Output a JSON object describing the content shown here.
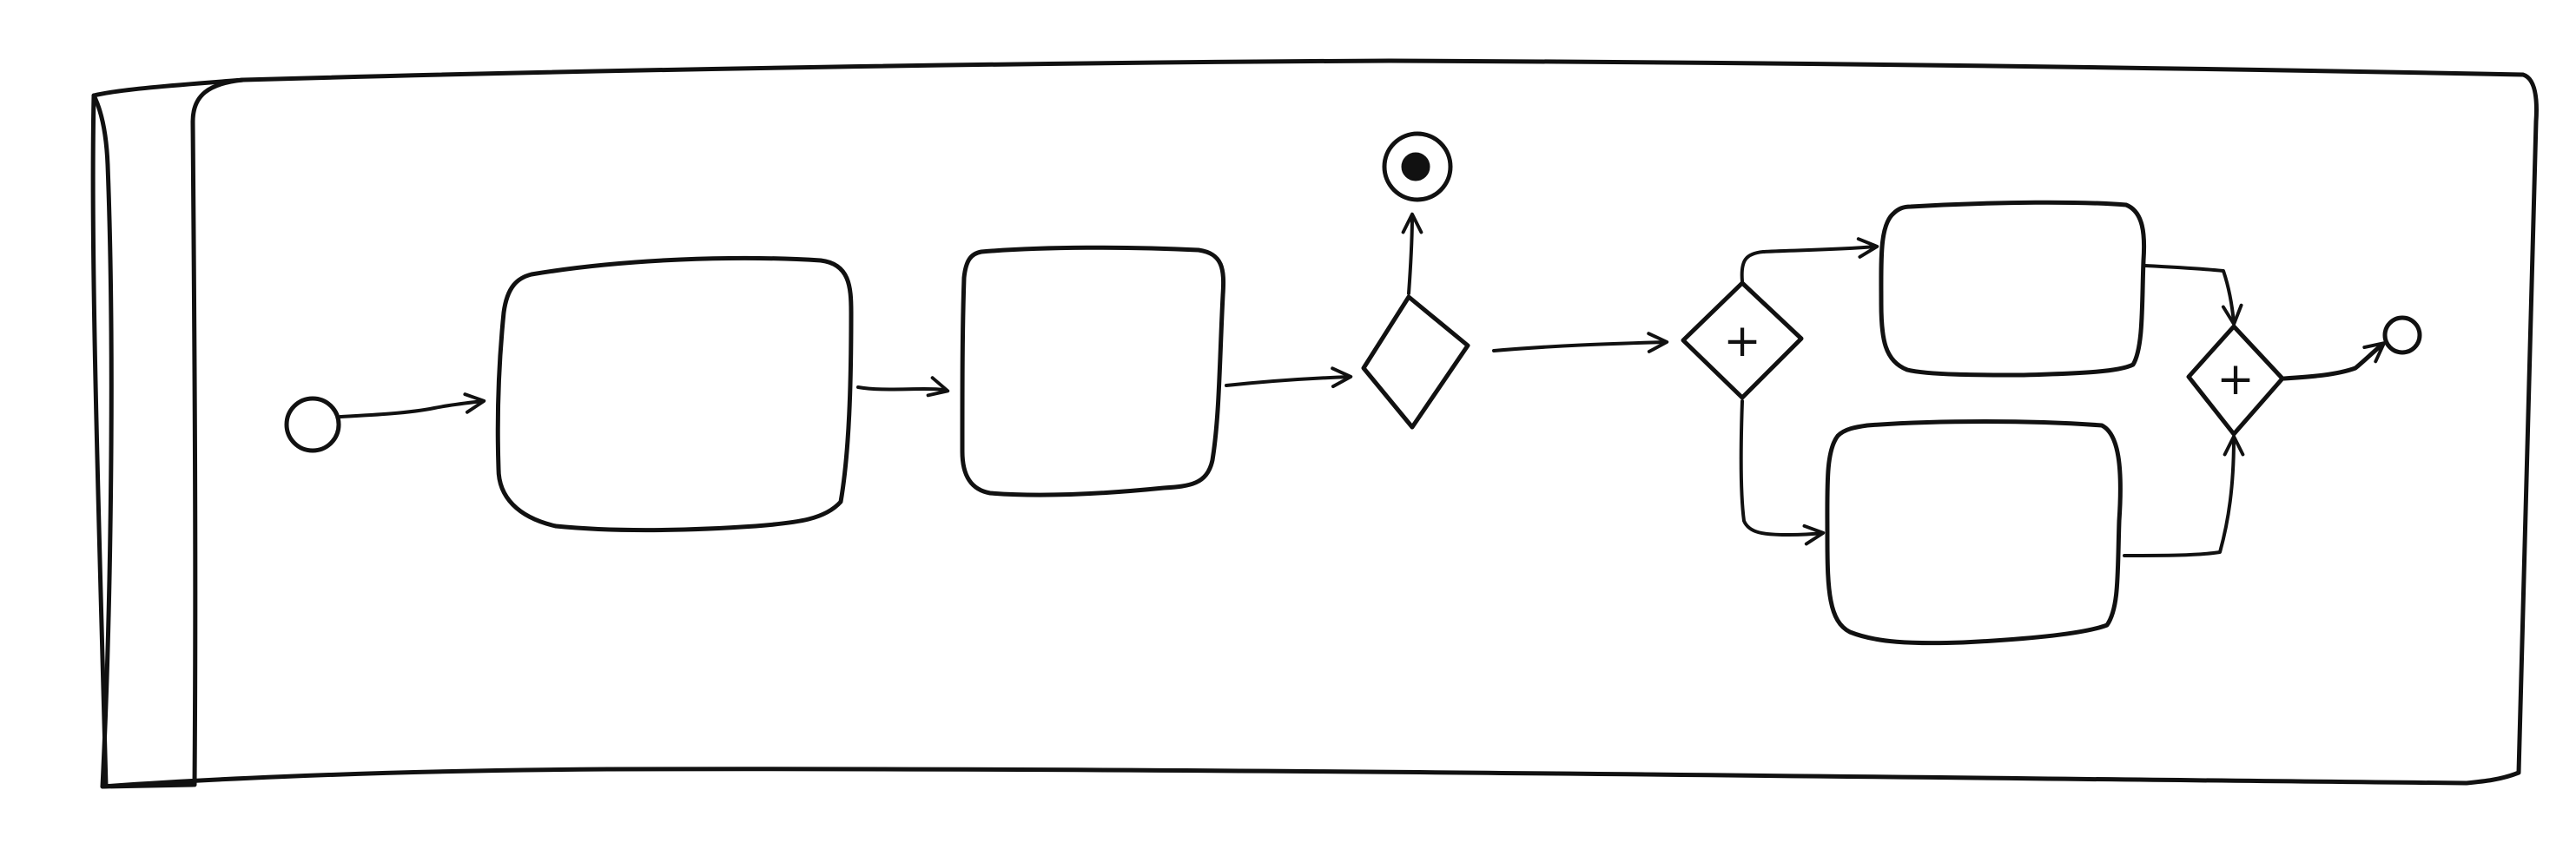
{
  "diagram": {
    "kind": "hand-drawn BPMN process sketch",
    "ink_color": "#111111",
    "background_color": "#ffffff",
    "pool": {
      "label": ""
    },
    "elements": [
      {
        "id": "start-event",
        "type": "start-event",
        "label": ""
      },
      {
        "id": "task-1",
        "type": "task",
        "label": ""
      },
      {
        "id": "task-2",
        "type": "task",
        "label": ""
      },
      {
        "id": "exclusive-gateway",
        "type": "exclusive-gateway",
        "label": ""
      },
      {
        "id": "terminate-end-event",
        "type": "terminate-end-event",
        "label": ""
      },
      {
        "id": "parallel-split-gateway",
        "type": "parallel-gateway",
        "symbol": "+"
      },
      {
        "id": "task-3",
        "type": "task",
        "label": ""
      },
      {
        "id": "task-4",
        "type": "task",
        "label": ""
      },
      {
        "id": "parallel-join-gateway",
        "type": "parallel-gateway",
        "symbol": "+"
      },
      {
        "id": "end-event",
        "type": "end-event",
        "label": ""
      }
    ],
    "flows": [
      {
        "from": "start-event",
        "to": "task-1"
      },
      {
        "from": "task-1",
        "to": "task-2"
      },
      {
        "from": "task-2",
        "to": "exclusive-gateway"
      },
      {
        "from": "exclusive-gateway",
        "to": "terminate-end-event"
      },
      {
        "from": "exclusive-gateway",
        "to": "parallel-split-gateway"
      },
      {
        "from": "parallel-split-gateway",
        "to": "task-3"
      },
      {
        "from": "parallel-split-gateway",
        "to": "task-4"
      },
      {
        "from": "task-3",
        "to": "parallel-join-gateway"
      },
      {
        "from": "task-4",
        "to": "parallel-join-gateway"
      },
      {
        "from": "parallel-join-gateway",
        "to": "end-event"
      }
    ]
  }
}
